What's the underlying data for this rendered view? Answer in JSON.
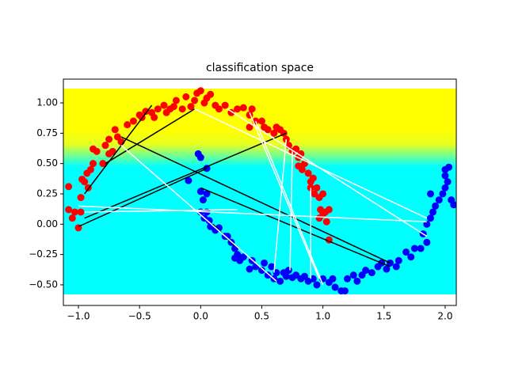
{
  "chart_data": {
    "type": "scatter",
    "title": "classification space",
    "xlim": [
      -1.123,
      2.091
    ],
    "ylim": [
      -0.67,
      1.196
    ],
    "xticks": [
      {
        "value": -1.0,
        "label": "−1.0"
      },
      {
        "value": -0.5,
        "label": "−0.5"
      },
      {
        "value": 0.0,
        "label": "0.0"
      },
      {
        "value": 0.5,
        "label": "0.5"
      },
      {
        "value": 1.0,
        "label": "1.0"
      },
      {
        "value": 1.5,
        "label": "1.5"
      },
      {
        "value": 2.0,
        "label": "2.0"
      }
    ],
    "yticks": [
      {
        "value": -0.5,
        "label": "−0.50"
      },
      {
        "value": -0.25,
        "label": "−0.25"
      },
      {
        "value": 0.0,
        "label": "0.00"
      },
      {
        "value": 0.25,
        "label": "0.25"
      },
      {
        "value": 0.5,
        "label": "0.50"
      },
      {
        "value": 0.75,
        "label": "0.75"
      },
      {
        "value": 1.0,
        "label": "1.00"
      }
    ],
    "series": [
      {
        "color": "#ff0000",
        "x": [
          -1.08,
          -1.05,
          -1.03,
          -1.0,
          -0.98,
          -1.08,
          -0.98,
          -0.95,
          -0.92,
          -0.97,
          -0.9,
          -0.93,
          -0.88,
          -0.85,
          -0.88,
          -0.8,
          -0.78,
          -0.75,
          -0.72,
          -0.75,
          -0.68,
          -0.7,
          -0.65,
          -0.6,
          -0.55,
          -0.5,
          -0.48,
          -0.45,
          -0.4,
          -0.38,
          -0.35,
          -0.3,
          -0.28,
          -0.25,
          -0.22,
          -0.2,
          -0.15,
          -0.12,
          -0.08,
          -0.05,
          -0.03,
          0.0,
          0.03,
          0.05,
          0.08,
          0.12,
          0.15,
          0.2,
          0.25,
          0.3,
          0.35,
          0.4,
          0.42,
          0.45,
          0.4,
          0.5,
          0.52,
          0.55,
          0.6,
          0.62,
          0.65,
          0.68,
          0.7,
          0.72,
          0.75,
          0.78,
          0.8,
          0.82,
          0.8,
          0.83,
          0.85,
          0.88,
          0.9,
          0.92,
          0.9,
          0.93,
          0.95,
          0.97,
          1.0,
          0.98,
          1.0,
          1.02,
          1.05,
          0.97,
          1.03,
          1.05
        ],
        "y": [
          0.12,
          0.05,
          0.1,
          -0.03,
          0.1,
          0.31,
          0.22,
          0.35,
          0.3,
          0.37,
          0.45,
          0.42,
          0.5,
          0.6,
          0.62,
          0.5,
          0.65,
          0.58,
          0.6,
          0.7,
          0.72,
          0.78,
          0.68,
          0.82,
          0.85,
          0.9,
          0.88,
          0.93,
          0.92,
          0.88,
          0.95,
          0.98,
          0.92,
          0.95,
          0.97,
          1.02,
          0.95,
          1.05,
          0.97,
          1.02,
          1.08,
          1.1,
          1.0,
          1.04,
          1.07,
          0.98,
          0.95,
          0.98,
          0.92,
          0.95,
          0.96,
          0.9,
          0.95,
          0.85,
          0.8,
          0.85,
          0.8,
          0.78,
          0.75,
          0.8,
          0.78,
          0.75,
          0.7,
          0.65,
          0.6,
          0.62,
          0.55,
          0.58,
          0.48,
          0.45,
          0.5,
          0.42,
          0.35,
          0.38,
          0.3,
          0.25,
          0.3,
          0.22,
          0.25,
          0.12,
          0.08,
          0.1,
          0.12,
          0.05,
          0.02,
          -0.13
        ]
      },
      {
        "color": "#0000ff",
        "x": [
          -0.1,
          -0.02,
          0.0,
          0.05,
          0.0,
          0.02,
          0.05,
          0.0,
          0.03,
          0.05,
          0.07,
          0.08,
          0.12,
          0.15,
          0.2,
          0.22,
          0.25,
          0.28,
          0.28,
          0.3,
          0.32,
          0.35,
          0.4,
          0.42,
          0.45,
          0.5,
          0.52,
          0.55,
          0.58,
          0.6,
          0.62,
          0.65,
          0.68,
          0.7,
          0.72,
          0.75,
          0.78,
          0.82,
          0.85,
          0.88,
          0.92,
          0.95,
          1.0,
          1.05,
          1.08,
          1.1,
          1.15,
          1.18,
          1.2,
          1.25,
          1.28,
          1.32,
          1.35,
          1.4,
          1.45,
          1.48,
          1.52,
          1.55,
          1.6,
          1.62,
          1.68,
          1.72,
          1.75,
          1.8,
          1.82,
          1.85,
          1.85,
          1.88,
          1.9,
          1.92,
          1.95,
          1.98,
          2.0,
          2.02,
          2.0,
          2.03,
          2.05,
          2.07,
          1.88,
          2.0
        ],
        "y": [
          0.36,
          0.58,
          0.55,
          0.46,
          0.27,
          0.2,
          0.25,
          0.1,
          0.05,
          0.1,
          0.03,
          -0.02,
          -0.05,
          -0.03,
          -0.1,
          -0.1,
          -0.15,
          -0.2,
          -0.28,
          -0.25,
          -0.3,
          -0.27,
          -0.37,
          -0.3,
          -0.35,
          -0.38,
          -0.32,
          -0.42,
          -0.35,
          -0.45,
          -0.4,
          -0.47,
          -0.4,
          -0.43,
          -0.38,
          -0.44,
          -0.42,
          -0.45,
          -0.43,
          -0.47,
          -0.45,
          -0.5,
          -0.45,
          -0.48,
          -0.45,
          -0.52,
          -0.55,
          -0.55,
          -0.45,
          -0.42,
          -0.47,
          -0.42,
          -0.38,
          -0.4,
          -0.35,
          -0.32,
          -0.37,
          -0.32,
          -0.35,
          -0.3,
          -0.23,
          -0.27,
          -0.2,
          -0.2,
          -0.08,
          -0.15,
          0.0,
          0.05,
          0.1,
          0.15,
          0.2,
          0.25,
          0.3,
          0.35,
          0.45,
          0.47,
          0.2,
          0.16,
          0.25,
          0.4
        ]
      }
    ],
    "segments": [
      {
        "color": "#000000",
        "x": [
          -1.0,
          0.05
        ],
        "y": [
          -0.02,
          0.46
        ]
      },
      {
        "color": "#000000",
        "x": [
          -0.95,
          -0.4
        ],
        "y": [
          0.25,
          0.98
        ]
      },
      {
        "color": "#000000",
        "x": [
          -0.65,
          1.55
        ],
        "y": [
          0.72,
          -0.32
        ]
      },
      {
        "color": "#000000",
        "x": [
          -0.95,
          0.7
        ],
        "y": [
          0.05,
          0.75
        ]
      },
      {
        "color": "#000000",
        "x": [
          0.0,
          1.55
        ],
        "y": [
          0.3,
          -0.35
        ]
      },
      {
        "color": "#000000",
        "x": [
          -0.78,
          -0.05
        ],
        "y": [
          0.5,
          0.95
        ]
      },
      {
        "color": "#000000",
        "x": [
          0.1,
          0.28
        ],
        "y": [
          0.0,
          -0.18
        ]
      },
      {
        "color": "#ffffff",
        "x": [
          -1.0,
          1.85
        ],
        "y": [
          0.15,
          0.02
        ]
      },
      {
        "color": "#ffffff",
        "x": [
          -0.65,
          0.62
        ],
        "y": [
          0.65,
          -0.47
        ]
      },
      {
        "color": "#ffffff",
        "x": [
          -0.05,
          1.85
        ],
        "y": [
          0.95,
          0.05
        ]
      },
      {
        "color": "#ffffff",
        "x": [
          0.22,
          1.85
        ],
        "y": [
          0.95,
          -0.1
        ]
      },
      {
        "color": "#ffffff",
        "x": [
          0.4,
          0.97
        ],
        "y": [
          0.92,
          -0.45
        ]
      },
      {
        "color": "#ffffff",
        "x": [
          0.45,
          1.0
        ],
        "y": [
          0.85,
          -0.5
        ]
      },
      {
        "color": "#ffffff",
        "x": [
          0.7,
          0.6
        ],
        "y": [
          0.7,
          -0.4
        ]
      },
      {
        "color": "#ffffff",
        "x": [
          0.75,
          0.73
        ],
        "y": [
          0.6,
          -0.38
        ]
      },
      {
        "color": "#ffffff",
        "x": [
          0.9,
          0.9
        ],
        "y": [
          0.3,
          -0.45
        ]
      },
      {
        "color": "#ffffff",
        "x": [
          -0.95,
          0.3
        ],
        "y": [
          0.1,
          0.12
        ]
      }
    ]
  }
}
